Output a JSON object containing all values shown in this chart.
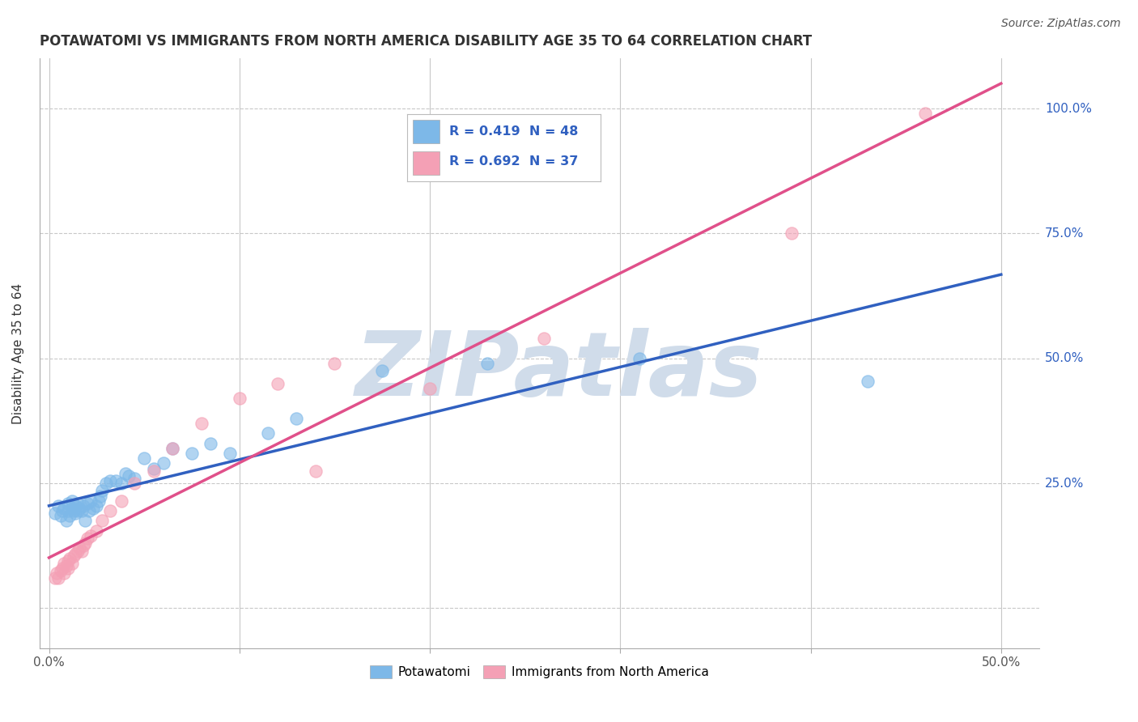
{
  "title": "POTAWATOMI VS IMMIGRANTS FROM NORTH AMERICA DISABILITY AGE 35 TO 64 CORRELATION CHART",
  "source": "Source: ZipAtlas.com",
  "xlabel": "",
  "ylabel": "Disability Age 35 to 64",
  "xlim": [
    -0.005,
    0.52
  ],
  "ylim": [
    -0.08,
    1.1
  ],
  "xticks": [
    0.0,
    0.1,
    0.2,
    0.3,
    0.4,
    0.5
  ],
  "xtick_labels": [
    "0.0%",
    "",
    "",
    "",
    "",
    "50.0%"
  ],
  "yticks": [
    0.0,
    0.25,
    0.5,
    0.75,
    1.0
  ],
  "ytick_labels_right": [
    "",
    "25.0%",
    "50.0%",
    "75.0%",
    "100.0%"
  ],
  "blue_color": "#7db8e8",
  "pink_color": "#f4a0b5",
  "blue_line_color": "#3060c0",
  "pink_line_color": "#e0508a",
  "background_color": "#ffffff",
  "grid_color": "#c8c8c8",
  "watermark": "ZIPatlas",
  "watermark_color": "#d0dcea",
  "R_blue": 0.419,
  "N_blue": 48,
  "R_pink": 0.692,
  "N_pink": 37,
  "legend_label_blue": "Potawatomi",
  "legend_label_pink": "Immigrants from North America",
  "blue_scatter_x": [
    0.003,
    0.005,
    0.006,
    0.007,
    0.008,
    0.009,
    0.01,
    0.01,
    0.011,
    0.012,
    0.012,
    0.013,
    0.014,
    0.014,
    0.015,
    0.015,
    0.016,
    0.017,
    0.018,
    0.019,
    0.02,
    0.021,
    0.022,
    0.023,
    0.025,
    0.026,
    0.027,
    0.028,
    0.03,
    0.032,
    0.035,
    0.038,
    0.04,
    0.042,
    0.045,
    0.05,
    0.055,
    0.06,
    0.065,
    0.075,
    0.085,
    0.095,
    0.115,
    0.13,
    0.175,
    0.23,
    0.31,
    0.43
  ],
  "blue_scatter_y": [
    0.19,
    0.205,
    0.185,
    0.195,
    0.2,
    0.175,
    0.195,
    0.21,
    0.185,
    0.2,
    0.215,
    0.195,
    0.205,
    0.19,
    0.195,
    0.21,
    0.2,
    0.195,
    0.205,
    0.175,
    0.21,
    0.195,
    0.215,
    0.2,
    0.205,
    0.215,
    0.225,
    0.235,
    0.25,
    0.255,
    0.255,
    0.25,
    0.27,
    0.265,
    0.26,
    0.3,
    0.28,
    0.29,
    0.32,
    0.31,
    0.33,
    0.31,
    0.35,
    0.38,
    0.475,
    0.49,
    0.5,
    0.455
  ],
  "pink_scatter_x": [
    0.003,
    0.004,
    0.005,
    0.006,
    0.007,
    0.008,
    0.008,
    0.009,
    0.01,
    0.01,
    0.011,
    0.012,
    0.013,
    0.014,
    0.015,
    0.016,
    0.017,
    0.018,
    0.019,
    0.02,
    0.022,
    0.025,
    0.028,
    0.032,
    0.038,
    0.045,
    0.055,
    0.065,
    0.08,
    0.1,
    0.12,
    0.15,
    0.2,
    0.26,
    0.14,
    0.39,
    0.46
  ],
  "pink_scatter_y": [
    0.06,
    0.07,
    0.06,
    0.075,
    0.08,
    0.07,
    0.09,
    0.085,
    0.08,
    0.095,
    0.1,
    0.09,
    0.105,
    0.11,
    0.115,
    0.12,
    0.115,
    0.125,
    0.13,
    0.14,
    0.145,
    0.155,
    0.175,
    0.195,
    0.215,
    0.25,
    0.275,
    0.32,
    0.37,
    0.42,
    0.45,
    0.49,
    0.44,
    0.54,
    0.275,
    0.75,
    0.99
  ],
  "title_fontsize": 12,
  "axis_label_fontsize": 11,
  "tick_fontsize": 11
}
